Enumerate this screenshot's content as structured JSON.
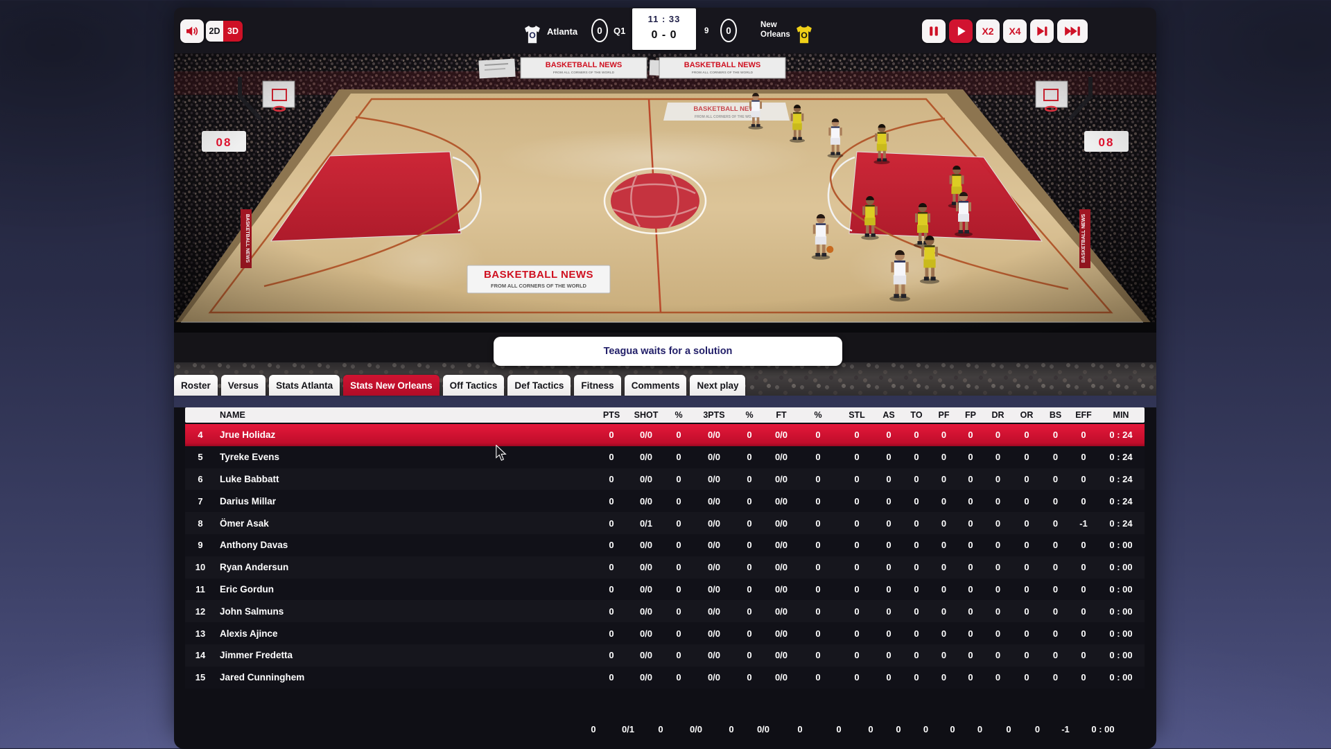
{
  "topbar": {
    "view_modes": {
      "mode_2d": "2D",
      "mode_3d": "3D"
    },
    "playback": {
      "x2_label": "X2",
      "x4_label": "X4"
    }
  },
  "scoreboard": {
    "home": {
      "name": "Atlanta",
      "score": "0",
      "badge_letter": "O"
    },
    "away": {
      "name": "New Orleans",
      "score": "0",
      "badge_letter": "O"
    },
    "quarter": "Q1",
    "game_clock": "11 : 33",
    "period_score": "0 - 0",
    "shot_clock": "9"
  },
  "message": {
    "text": "Teagua waits for a solution"
  },
  "tabs": [
    {
      "label": "Roster",
      "active": false
    },
    {
      "label": "Versus",
      "active": false
    },
    {
      "label": "Stats Atlanta",
      "active": false
    },
    {
      "label": "Stats New Orleans",
      "active": true
    },
    {
      "label": "Off Tactics",
      "active": false
    },
    {
      "label": "Def Tactics",
      "active": false
    },
    {
      "label": "Fitness",
      "active": false
    },
    {
      "label": "Comments",
      "active": false
    },
    {
      "label": "Next play",
      "active": false
    }
  ],
  "table": {
    "columns": [
      "NAME",
      "PTS",
      "SHOT",
      "%",
      "3PTS",
      "%",
      "FT",
      "%",
      "STL",
      "AS",
      "TO",
      "PF",
      "FP",
      "DR",
      "OR",
      "BS",
      "EFF",
      "MIN"
    ],
    "rows": [
      {
        "num": "4",
        "name": "Jrue Holidaz",
        "highlight": true,
        "stats": [
          "0",
          "0/0",
          "0",
          "0/0",
          "0",
          "0/0",
          "0",
          "0",
          "0",
          "0",
          "0",
          "0",
          "0",
          "0",
          "0",
          "0",
          "0 : 24"
        ]
      },
      {
        "num": "5",
        "name": "Tyreke Evens",
        "highlight": false,
        "stats": [
          "0",
          "0/0",
          "0",
          "0/0",
          "0",
          "0/0",
          "0",
          "0",
          "0",
          "0",
          "0",
          "0",
          "0",
          "0",
          "0",
          "0",
          "0 : 24"
        ]
      },
      {
        "num": "6",
        "name": "Luke Babbatt",
        "highlight": false,
        "stats": [
          "0",
          "0/0",
          "0",
          "0/0",
          "0",
          "0/0",
          "0",
          "0",
          "0",
          "0",
          "0",
          "0",
          "0",
          "0",
          "0",
          "0",
          "0 : 24"
        ]
      },
      {
        "num": "7",
        "name": "Darius Millar",
        "highlight": false,
        "stats": [
          "0",
          "0/0",
          "0",
          "0/0",
          "0",
          "0/0",
          "0",
          "0",
          "0",
          "0",
          "0",
          "0",
          "0",
          "0",
          "0",
          "0",
          "0 : 24"
        ]
      },
      {
        "num": "8",
        "name": "Ömer Asak",
        "highlight": false,
        "stats": [
          "0",
          "0/1",
          "0",
          "0/0",
          "0",
          "0/0",
          "0",
          "0",
          "0",
          "0",
          "0",
          "0",
          "0",
          "0",
          "0",
          "-1",
          "0 : 24"
        ]
      },
      {
        "num": "9",
        "name": "Anthony Davas",
        "highlight": false,
        "stats": [
          "0",
          "0/0",
          "0",
          "0/0",
          "0",
          "0/0",
          "0",
          "0",
          "0",
          "0",
          "0",
          "0",
          "0",
          "0",
          "0",
          "0",
          "0 : 00"
        ]
      },
      {
        "num": "10",
        "name": "Ryan Andersun",
        "highlight": false,
        "stats": [
          "0",
          "0/0",
          "0",
          "0/0",
          "0",
          "0/0",
          "0",
          "0",
          "0",
          "0",
          "0",
          "0",
          "0",
          "0",
          "0",
          "0",
          "0 : 00"
        ]
      },
      {
        "num": "11",
        "name": "Eric Gordun",
        "highlight": false,
        "stats": [
          "0",
          "0/0",
          "0",
          "0/0",
          "0",
          "0/0",
          "0",
          "0",
          "0",
          "0",
          "0",
          "0",
          "0",
          "0",
          "0",
          "0",
          "0 : 00"
        ]
      },
      {
        "num": "12",
        "name": "John Salmuns",
        "highlight": false,
        "stats": [
          "0",
          "0/0",
          "0",
          "0/0",
          "0",
          "0/0",
          "0",
          "0",
          "0",
          "0",
          "0",
          "0",
          "0",
          "0",
          "0",
          "0",
          "0 : 00"
        ]
      },
      {
        "num": "13",
        "name": "Alexis Ajince",
        "highlight": false,
        "stats": [
          "0",
          "0/0",
          "0",
          "0/0",
          "0",
          "0/0",
          "0",
          "0",
          "0",
          "0",
          "0",
          "0",
          "0",
          "0",
          "0",
          "0",
          "0 : 00"
        ]
      },
      {
        "num": "14",
        "name": "Jimmer Fredetta",
        "highlight": false,
        "stats": [
          "0",
          "0/0",
          "0",
          "0/0",
          "0",
          "0/0",
          "0",
          "0",
          "0",
          "0",
          "0",
          "0",
          "0",
          "0",
          "0",
          "0",
          "0 : 00"
        ]
      },
      {
        "num": "15",
        "name": "Jared Cunninghem",
        "highlight": false,
        "stats": [
          "0",
          "0/0",
          "0",
          "0/0",
          "0",
          "0/0",
          "0",
          "0",
          "0",
          "0",
          "0",
          "0",
          "0",
          "0",
          "0",
          "0",
          "0 : 00"
        ]
      }
    ],
    "totals": [
      "0",
      "0/1",
      "0",
      "0/0",
      "0",
      "0/0",
      "0",
      "0",
      "0",
      "0",
      "0",
      "0",
      "0",
      "0",
      "0",
      "-1",
      "0 : 00"
    ]
  },
  "court": {
    "banner_title": "BASKETBALL NEWS",
    "banner_subtitle": "FROM ALL CORNERS OF THE WORLD",
    "led_left": "08",
    "led_right": "08"
  },
  "colors": {
    "accent_red": "#ce1126",
    "tab_active_red": "#c00e2c",
    "highlight_row_red": "#d8112f",
    "message_text_navy": "#232069",
    "jersey_home": "#ffffff",
    "jersey_away": "#f0d018"
  }
}
